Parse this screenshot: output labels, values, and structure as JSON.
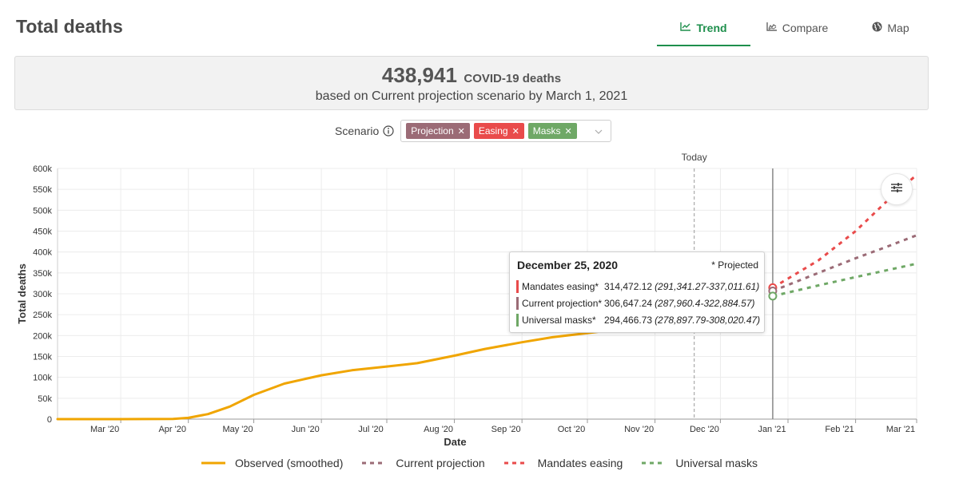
{
  "header": {
    "title": "Total deaths"
  },
  "tabs": [
    {
      "label": "Trend",
      "icon": "line-chart-icon",
      "active": true
    },
    {
      "label": "Compare",
      "icon": "area-chart-icon",
      "active": false
    },
    {
      "label": "Map",
      "icon": "globe-icon",
      "active": false
    }
  ],
  "summary": {
    "count": "438,941",
    "unit": "COVID-19 deaths",
    "subtitle": "based on Current projection scenario by March 1, 2021"
  },
  "scenario": {
    "label": "Scenario",
    "chips": [
      {
        "label": "Projection",
        "color": "#9b6b76"
      },
      {
        "label": "Easing",
        "color": "#e94b4b"
      },
      {
        "label": "Masks",
        "color": "#6fa866"
      }
    ]
  },
  "tooltip": {
    "date": "December 25, 2020",
    "note": "* Projected",
    "rows": [
      {
        "name": "Mandates easing*",
        "value": "314,472.12",
        "range": "(291,341.27-337,011.61)",
        "color": "#e94b4b"
      },
      {
        "name": "Current projection*",
        "value": "306,647.24",
        "range": "(287,960.4-322,884.57)",
        "color": "#9b6b76"
      },
      {
        "name": "Universal masks*",
        "value": "294,466.73",
        "range": "(278,897.79-308,020.47)",
        "color": "#6fa866"
      }
    ]
  },
  "legend": [
    {
      "label": "Observed (smoothed)",
      "color": "#f0a500",
      "style": "solid"
    },
    {
      "label": "Current projection",
      "color": "#9b6b76",
      "style": "dashed"
    },
    {
      "label": "Mandates easing",
      "color": "#e94b4b",
      "style": "dashed"
    },
    {
      "label": "Universal masks",
      "color": "#6fa866",
      "style": "dashed"
    }
  ],
  "chart_data": {
    "type": "line",
    "xlabel": "Date",
    "ylabel": "Total deaths",
    "x_ticks": [
      "Mar '20",
      "Apr '20",
      "May '20",
      "Jun '20",
      "Jul '20",
      "Aug '20",
      "Sep '20",
      "Oct '20",
      "Nov '20",
      "Dec '20",
      "Jan '21",
      "Feb '21",
      "Mar '21"
    ],
    "y_ticks": [
      "0",
      "50k",
      "100k",
      "150k",
      "200k",
      "250k",
      "300k",
      "350k",
      "400k",
      "450k",
      "500k",
      "550k",
      "600k"
    ],
    "ylim": [
      0,
      600000
    ],
    "xlim": [
      "2020-02-01",
      "2021-03-01"
    ],
    "grid": true,
    "today_label": "Today",
    "today_date": "2020-11-19",
    "hover_date": "2020-12-25",
    "series": [
      {
        "name": "Observed (smoothed)",
        "color": "#f0a500",
        "style": "solid",
        "points": [
          [
            "2020-02-01",
            0
          ],
          [
            "2020-03-01",
            0
          ],
          [
            "2020-03-25",
            500
          ],
          [
            "2020-04-01",
            3000
          ],
          [
            "2020-04-10",
            12000
          ],
          [
            "2020-04-20",
            30000
          ],
          [
            "2020-05-01",
            58000
          ],
          [
            "2020-05-15",
            85000
          ],
          [
            "2020-06-01",
            105000
          ],
          [
            "2020-06-15",
            117000
          ],
          [
            "2020-07-01",
            126000
          ],
          [
            "2020-07-15",
            134000
          ],
          [
            "2020-08-01",
            152000
          ],
          [
            "2020-08-15",
            168000
          ],
          [
            "2020-09-01",
            184000
          ],
          [
            "2020-09-15",
            196000
          ],
          [
            "2020-10-01",
            206000
          ],
          [
            "2020-10-10",
            212000
          ]
        ]
      },
      {
        "name": "Mandates easing",
        "color": "#e94b4b",
        "style": "dashed",
        "points": [
          [
            "2020-12-25",
            314472
          ],
          [
            "2021-01-15",
            380000
          ],
          [
            "2021-02-01",
            450000
          ],
          [
            "2021-02-15",
            520000
          ],
          [
            "2021-03-01",
            585000
          ]
        ]
      },
      {
        "name": "Current projection",
        "color": "#9b6b76",
        "style": "dashed",
        "points": [
          [
            "2020-12-25",
            306647
          ],
          [
            "2021-01-15",
            350000
          ],
          [
            "2021-02-01",
            385000
          ],
          [
            "2021-02-15",
            412000
          ],
          [
            "2021-03-01",
            440000
          ]
        ]
      },
      {
        "name": "Universal masks",
        "color": "#6fa866",
        "style": "dashed",
        "points": [
          [
            "2020-12-25",
            294467
          ],
          [
            "2021-01-15",
            320000
          ],
          [
            "2021-02-01",
            340000
          ],
          [
            "2021-02-15",
            356000
          ],
          [
            "2021-03-01",
            372000
          ]
        ]
      }
    ]
  }
}
